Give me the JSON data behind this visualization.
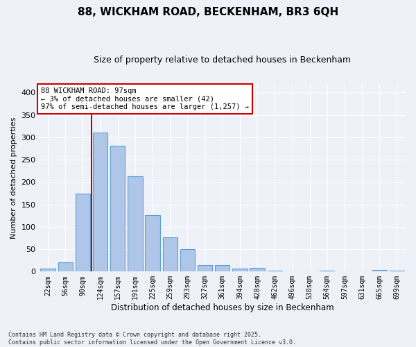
{
  "title1": "88, WICKHAM ROAD, BECKENHAM, BR3 6QH",
  "title2": "Size of property relative to detached houses in Beckenham",
  "xlabel": "Distribution of detached houses by size in Beckenham",
  "ylabel": "Number of detached properties",
  "categories": [
    "22sqm",
    "56sqm",
    "90sqm",
    "124sqm",
    "157sqm",
    "191sqm",
    "225sqm",
    "259sqm",
    "293sqm",
    "327sqm",
    "361sqm",
    "394sqm",
    "428sqm",
    "462sqm",
    "496sqm",
    "530sqm",
    "564sqm",
    "597sqm",
    "631sqm",
    "665sqm",
    "699sqm"
  ],
  "values": [
    6,
    21,
    175,
    311,
    282,
    213,
    126,
    76,
    50,
    15,
    14,
    6,
    8,
    2,
    1,
    0,
    2,
    0,
    0,
    3,
    2
  ],
  "bar_color": "#aec6e8",
  "bar_edge_color": "#5a9fd4",
  "vline_x_idx": 2,
  "vline_color": "#cc0000",
  "annotation_text": "88 WICKHAM ROAD: 97sqm\n← 3% of detached houses are smaller (42)\n97% of semi-detached houses are larger (1,257) →",
  "annotation_box_color": "#ffffff",
  "annotation_box_edge": "#cc0000",
  "background_color": "#eef2f8",
  "grid_color": "#ffffff",
  "footer": "Contains HM Land Registry data © Crown copyright and database right 2025.\nContains public sector information licensed under the Open Government Licence v3.0.",
  "ylim": [
    0,
    420
  ],
  "yticks": [
    0,
    50,
    100,
    150,
    200,
    250,
    300,
    350,
    400
  ]
}
